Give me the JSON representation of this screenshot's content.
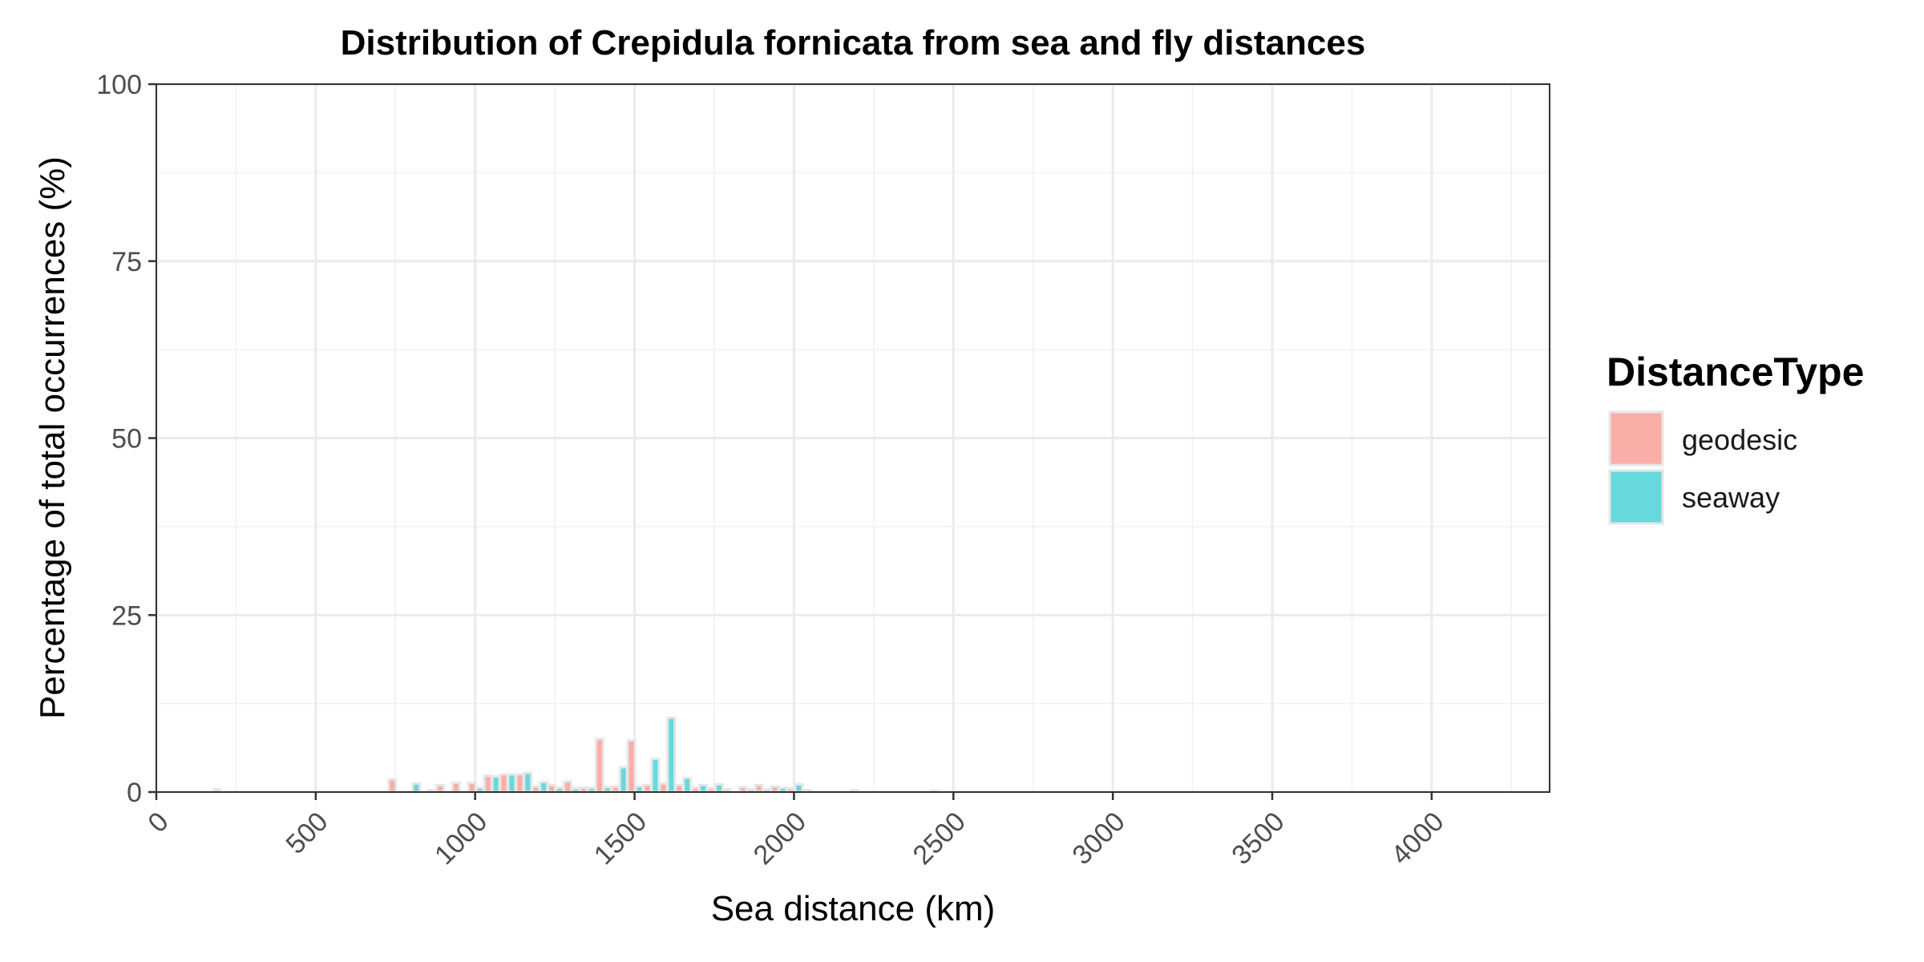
{
  "chart_data": {
    "type": "bar",
    "title": "Distribution of Crepidula fornicata from sea and fly distances",
    "xlabel": "Sea distance (km)",
    "ylabel": "Percentage of total occurrences (%)",
    "xlim": [
      0,
      4370
    ],
    "ylim": [
      0,
      100
    ],
    "xticks": [
      0,
      500,
      1000,
      1500,
      2000,
      2500,
      3000,
      3500,
      4000
    ],
    "yticks": [
      0,
      25,
      50,
      75,
      100
    ],
    "grid": true,
    "bin_width": 50,
    "legend": {
      "title": "DistanceType",
      "position": "right"
    },
    "series": [
      {
        "name": "geodesic",
        "color": "#F8766D",
        "x": [
          200,
          750,
          900,
          950,
          1000,
          1050,
          1100,
          1150,
          1200,
          1250,
          1300,
          1350,
          1400,
          1450,
          1500,
          1550,
          1600,
          1650,
          1700,
          1750,
          1800,
          1850,
          1900,
          1950,
          2000,
          2050,
          2200,
          2450
        ],
        "values": [
          0.4,
          1.8,
          1.0,
          1.3,
          1.3,
          2.3,
          2.5,
          2.5,
          0.8,
          1.0,
          1.5,
          0.6,
          7.5,
          0.8,
          7.3,
          1.0,
          1.2,
          1.0,
          0.6,
          0.5,
          0.4,
          0.7,
          1.0,
          0.8,
          0.5,
          0.3,
          0.3,
          0.2
        ]
      },
      {
        "name": "seaway",
        "color": "#00BFC4",
        "x": [
          800,
          850,
          1000,
          1050,
          1100,
          1150,
          1200,
          1250,
          1300,
          1350,
          1400,
          1450,
          1500,
          1550,
          1600,
          1650,
          1700,
          1750,
          1850,
          1900,
          1950,
          2000
        ],
        "values": [
          1.2,
          0.3,
          0.6,
          2.2,
          2.5,
          2.7,
          1.4,
          0.6,
          0.5,
          0.6,
          0.7,
          3.5,
          0.8,
          4.7,
          10.5,
          2.0,
          1.0,
          1.1,
          0.4,
          0.4,
          0.6,
          1.1
        ]
      }
    ]
  }
}
